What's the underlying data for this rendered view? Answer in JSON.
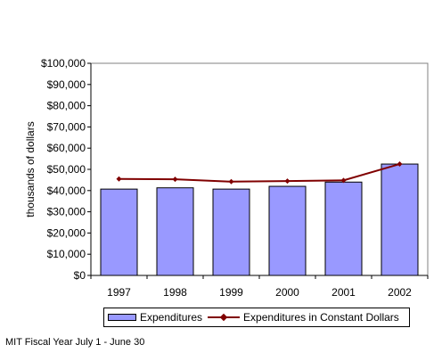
{
  "chart_data": {
    "type": "bar",
    "categories": [
      "1997",
      "1998",
      "1999",
      "2000",
      "2001",
      "2002"
    ],
    "series": [
      {
        "name": "Expenditures",
        "type": "bar",
        "values": [
          40700,
          41300,
          40700,
          42000,
          44000,
          52500
        ],
        "color": "#9999ff"
      },
      {
        "name": "Expenditures in Constant Dollars",
        "type": "line",
        "values": [
          45500,
          45300,
          44200,
          44500,
          44800,
          52500
        ],
        "color": "#800000"
      }
    ],
    "ylabel": "thousands of dollars",
    "xlabel": "",
    "ylim": [
      0,
      100000
    ],
    "yticks": [
      0,
      10000,
      20000,
      30000,
      40000,
      50000,
      60000,
      70000,
      80000,
      90000,
      100000
    ],
    "ytick_labels": [
      "$0",
      "$10,000",
      "$20,000",
      "$30,000",
      "$40,000",
      "$50,000",
      "$60,000",
      "$70,000",
      "$80,000",
      "$90,000",
      "$100,000"
    ],
    "grid": false,
    "legend_position": "bottom"
  },
  "footnote": "MIT Fiscal Year July 1 - June 30"
}
